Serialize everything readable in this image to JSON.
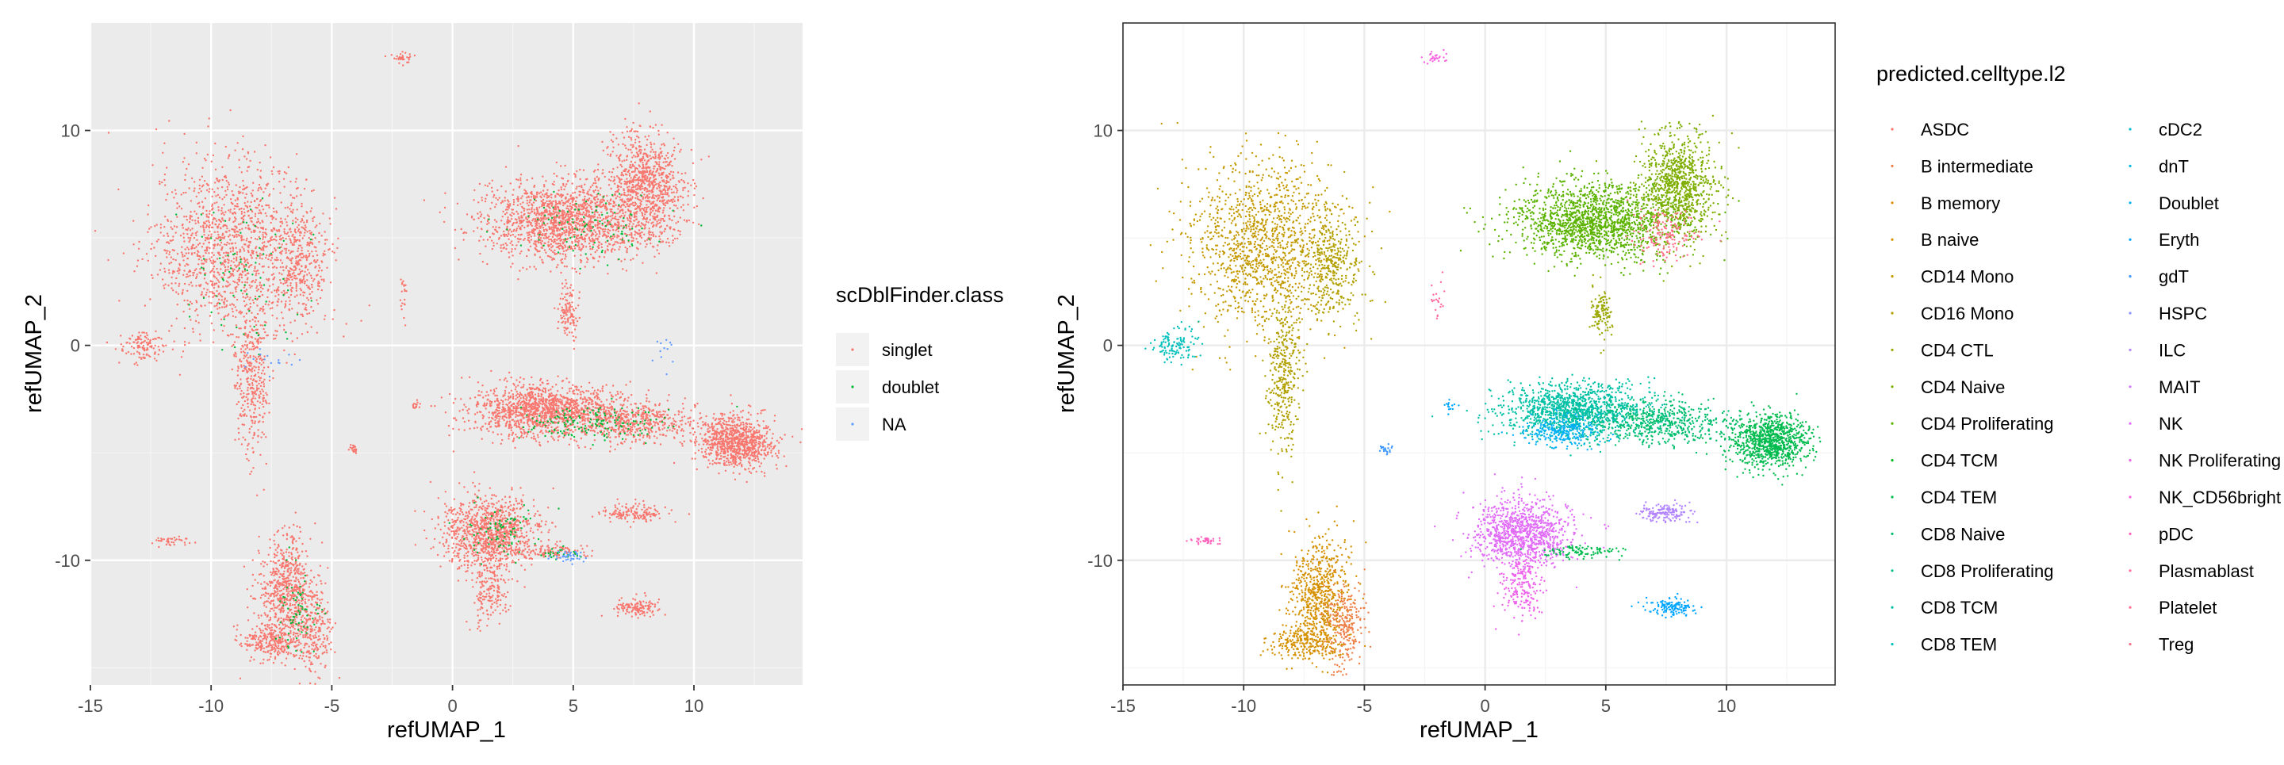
{
  "chart_data": [
    {
      "type": "scatter",
      "xlabel": "refUMAP_1",
      "ylabel": "refUMAP_2",
      "xlim": [
        -15,
        14.5
      ],
      "ylim": [
        -15.8,
        15
      ],
      "x_ticks": [
        -15,
        -10,
        -5,
        0,
        5,
        10
      ],
      "y_ticks": [
        -10,
        0,
        10
      ],
      "x_tick_labels": [
        "-15",
        "-10",
        "-5",
        "0",
        "5",
        "10"
      ],
      "y_tick_labels": [
        "-10",
        "0",
        "10"
      ],
      "theme": "gray",
      "grid": true,
      "legend": {
        "title": "scDblFinder.class",
        "position": "right",
        "entries": [
          {
            "label": "singlet",
            "color": "#F8766D"
          },
          {
            "label": "doublet",
            "color": "#00BA38"
          },
          {
            "label": "NA",
            "color": "#619CFF"
          }
        ]
      },
      "clusters": [
        {
          "class": "singlet",
          "cx": -9.2,
          "cy": 4.6,
          "sx": 1.6,
          "sy": 2.0,
          "n": 1300
        },
        {
          "class": "singlet",
          "cx": -6.3,
          "cy": 3.8,
          "sx": 0.6,
          "sy": 1.3,
          "n": 350
        },
        {
          "class": "singlet",
          "cx": -8.3,
          "cy": -1.5,
          "sx": 0.35,
          "sy": 1.8,
          "n": 350
        },
        {
          "class": "singlet",
          "cx": -12.8,
          "cy": 0.0,
          "sx": 0.5,
          "sy": 0.4,
          "n": 120
        },
        {
          "class": "singlet",
          "cx": -6.9,
          "cy": -11.5,
          "sx": 0.6,
          "sy": 1.3,
          "n": 650
        },
        {
          "class": "singlet",
          "cx": -5.8,
          "cy": -13.2,
          "sx": 0.4,
          "sy": 1.0,
          "n": 250
        },
        {
          "class": "singlet",
          "cx": -7.5,
          "cy": -13.8,
          "sx": 0.7,
          "sy": 0.4,
          "n": 250
        },
        {
          "class": "singlet",
          "cx": 4.6,
          "cy": 5.8,
          "sx": 1.7,
          "sy": 0.9,
          "n": 1600
        },
        {
          "class": "singlet",
          "cx": 8.0,
          "cy": 7.4,
          "sx": 0.8,
          "sy": 1.2,
          "n": 900
        },
        {
          "class": "singlet",
          "cx": 4.8,
          "cy": 1.5,
          "sx": 0.2,
          "sy": 0.6,
          "n": 120
        },
        {
          "class": "singlet",
          "cx": 3.8,
          "cy": -3.0,
          "sx": 1.5,
          "sy": 0.6,
          "n": 1300
        },
        {
          "class": "singlet",
          "cx": 7.5,
          "cy": -3.6,
          "sx": 1.4,
          "sy": 0.5,
          "n": 500
        },
        {
          "class": "singlet",
          "cx": 11.8,
          "cy": -4.5,
          "sx": 0.8,
          "sy": 0.6,
          "n": 900
        },
        {
          "class": "singlet",
          "cx": 1.5,
          "cy": -8.7,
          "sx": 1.0,
          "sy": 0.8,
          "n": 1000
        },
        {
          "class": "singlet",
          "cx": 1.6,
          "cy": -11.2,
          "sx": 0.4,
          "sy": 0.9,
          "n": 200
        },
        {
          "class": "singlet",
          "cx": 4.0,
          "cy": -9.6,
          "sx": 0.8,
          "sy": 0.15,
          "n": 100
        },
        {
          "class": "singlet",
          "cx": 7.5,
          "cy": -7.8,
          "sx": 0.6,
          "sy": 0.2,
          "n": 150
        },
        {
          "class": "singlet",
          "cx": 7.7,
          "cy": -12.2,
          "sx": 0.5,
          "sy": 0.2,
          "n": 130
        },
        {
          "class": "singlet",
          "cx": -2.1,
          "cy": 13.4,
          "sx": 0.25,
          "sy": 0.15,
          "n": 30
        },
        {
          "class": "singlet",
          "cx": -11.6,
          "cy": -9.1,
          "sx": 0.4,
          "sy": 0.1,
          "n": 40
        },
        {
          "class": "singlet",
          "cx": -4.1,
          "cy": -4.8,
          "sx": 0.15,
          "sy": 0.15,
          "n": 20
        },
        {
          "class": "singlet",
          "cx": -1.5,
          "cy": -2.8,
          "sx": 0.12,
          "sy": 0.12,
          "n": 15
        },
        {
          "class": "singlet",
          "cx": -2.0,
          "cy": 2.2,
          "sx": 0.12,
          "sy": 0.5,
          "n": 20
        },
        {
          "class": "doublet",
          "cx": -8.6,
          "cy": 3.2,
          "sx": 1.4,
          "sy": 2.0,
          "n": 80
        },
        {
          "class": "doublet",
          "cx": -6.5,
          "cy": -12.4,
          "sx": 0.4,
          "sy": 1.0,
          "n": 70
        },
        {
          "class": "doublet",
          "cx": 5.5,
          "cy": 5.5,
          "sx": 1.6,
          "sy": 0.8,
          "n": 100
        },
        {
          "class": "doublet",
          "cx": 5.5,
          "cy": -3.6,
          "sx": 1.6,
          "sy": 0.4,
          "n": 160
        },
        {
          "class": "doublet",
          "cx": 2.0,
          "cy": -8.5,
          "sx": 0.8,
          "sy": 0.6,
          "n": 80
        },
        {
          "class": "doublet",
          "cx": 4.5,
          "cy": -9.7,
          "sx": 0.5,
          "sy": 0.12,
          "n": 25
        },
        {
          "class": "NA",
          "cx": 4.8,
          "cy": -9.8,
          "sx": 0.4,
          "sy": 0.15,
          "n": 40
        },
        {
          "class": "NA",
          "cx": -7.6,
          "cy": -0.8,
          "sx": 0.5,
          "sy": 0.4,
          "n": 15
        },
        {
          "class": "NA",
          "cx": 9.0,
          "cy": -0.6,
          "sx": 0.25,
          "sy": 0.4,
          "n": 12
        }
      ]
    },
    {
      "type": "scatter",
      "xlabel": "refUMAP_1",
      "ylabel": "refUMAP_2",
      "xlim": [
        -15,
        14.5
      ],
      "ylim": [
        -15.8,
        15
      ],
      "x_ticks": [
        -15,
        -10,
        -5,
        0,
        5,
        10
      ],
      "y_ticks": [
        -10,
        0,
        10
      ],
      "x_tick_labels": [
        "-15",
        "-10",
        "-5",
        "0",
        "5",
        "10"
      ],
      "y_tick_labels": [
        "-10",
        "0",
        "10"
      ],
      "theme": "bw",
      "grid": true,
      "legend": {
        "title": "predicted.celltype.l2",
        "position": "right",
        "columns": 2,
        "entries": [
          {
            "label": "ASDC",
            "color": "#F8766D"
          },
          {
            "label": "B intermediate",
            "color": "#EF7F49"
          },
          {
            "label": "B memory",
            "color": "#E38900"
          },
          {
            "label": "B naive",
            "color": "#D59100"
          },
          {
            "label": "CD14 Mono",
            "color": "#C49A00"
          },
          {
            "label": "CD16 Mono",
            "color": "#B1A100"
          },
          {
            "label": "CD4 CTL",
            "color": "#9AA800"
          },
          {
            "label": "CD4 Naive",
            "color": "#7FAE00"
          },
          {
            "label": "CD4 Proliferating",
            "color": "#5BB300"
          },
          {
            "label": "CD4 TCM",
            "color": "#00B81F"
          },
          {
            "label": "CD4 TEM",
            "color": "#00BB4E"
          },
          {
            "label": "CD8 Naive",
            "color": "#00BE6F"
          },
          {
            "label": "CD8 Proliferating",
            "color": "#00C08B"
          },
          {
            "label": "CD8 TCM",
            "color": "#00C1A5"
          },
          {
            "label": "CD8 TEM",
            "color": "#00C0BC"
          },
          {
            "label": "cDC2",
            "color": "#00BDD2"
          },
          {
            "label": "dnT",
            "color": "#00B8E5"
          },
          {
            "label": "Doublet",
            "color": "#00B0F6"
          },
          {
            "label": "Eryth",
            "color": "#00A5FF"
          },
          {
            "label": "gdT",
            "color": "#3D97FF"
          },
          {
            "label": "HSPC",
            "color": "#8B93FF"
          },
          {
            "label": "ILC",
            "color": "#B385FF"
          },
          {
            "label": "MAIT",
            "color": "#CF78FF"
          },
          {
            "label": "NK",
            "color": "#E16CF7"
          },
          {
            "label": "NK Proliferating",
            "color": "#EE62EA"
          },
          {
            "label": "NK_CD56bright",
            "color": "#F863DF"
          },
          {
            "label": "pDC",
            "color": "#FF62BC"
          },
          {
            "label": "Plasmablast",
            "color": "#FF699C"
          },
          {
            "label": "Platelet",
            "color": "#FF6C91"
          },
          {
            "label": "Treg",
            "color": "#FF6F87"
          }
        ]
      },
      "clusters": [
        {
          "color": "#C49A00",
          "cx": -9.2,
          "cy": 4.6,
          "sx": 1.6,
          "sy": 2.0,
          "n": 1300
        },
        {
          "color": "#B1A100",
          "cx": -6.3,
          "cy": 3.8,
          "sx": 0.6,
          "sy": 1.3,
          "n": 350
        },
        {
          "color": "#B1A100",
          "cx": -8.3,
          "cy": -1.5,
          "sx": 0.35,
          "sy": 1.8,
          "n": 350
        },
        {
          "color": "#00C0BC",
          "cx": -12.8,
          "cy": 0.0,
          "sx": 0.5,
          "sy": 0.4,
          "n": 120
        },
        {
          "color": "#D59100",
          "cx": -6.9,
          "cy": -11.5,
          "sx": 0.6,
          "sy": 1.3,
          "n": 650
        },
        {
          "color": "#EF7F49",
          "cx": -5.8,
          "cy": -13.2,
          "sx": 0.4,
          "sy": 1.0,
          "n": 250
        },
        {
          "color": "#D59100",
          "cx": -7.5,
          "cy": -13.8,
          "sx": 0.7,
          "sy": 0.4,
          "n": 250
        },
        {
          "color": "#5BB300",
          "cx": 4.6,
          "cy": 5.8,
          "sx": 1.7,
          "sy": 0.9,
          "n": 1600
        },
        {
          "color": "#7FAE00",
          "cx": 8.0,
          "cy": 7.4,
          "sx": 0.8,
          "sy": 1.2,
          "n": 900
        },
        {
          "color": "#FF6F87",
          "cx": 7.5,
          "cy": 5.2,
          "sx": 0.6,
          "sy": 0.6,
          "n": 160
        },
        {
          "color": "#9AA800",
          "cx": 4.8,
          "cy": 1.5,
          "sx": 0.2,
          "sy": 0.6,
          "n": 120
        },
        {
          "color": "#00C1A5",
          "cx": 3.8,
          "cy": -3.0,
          "sx": 1.5,
          "sy": 0.6,
          "n": 1300
        },
        {
          "color": "#00B0F6",
          "cx": 3.2,
          "cy": -4.0,
          "sx": 0.8,
          "sy": 0.4,
          "n": 250
        },
        {
          "color": "#00BE6F",
          "cx": 7.5,
          "cy": -3.6,
          "sx": 1.4,
          "sy": 0.5,
          "n": 500
        },
        {
          "color": "#00BB4E",
          "cx": 11.8,
          "cy": -4.5,
          "sx": 0.8,
          "sy": 0.6,
          "n": 900
        },
        {
          "color": "#E16CF7",
          "cx": 1.5,
          "cy": -8.7,
          "sx": 1.0,
          "sy": 0.8,
          "n": 1000
        },
        {
          "color": "#EE62EA",
          "cx": 1.6,
          "cy": -11.2,
          "sx": 0.4,
          "sy": 0.9,
          "n": 200
        },
        {
          "color": "#00BB4E",
          "cx": 4.0,
          "cy": -9.6,
          "sx": 0.8,
          "sy": 0.15,
          "n": 100
        },
        {
          "color": "#B385FF",
          "cx": 7.5,
          "cy": -7.8,
          "sx": 0.6,
          "sy": 0.2,
          "n": 150
        },
        {
          "color": "#00A5FF",
          "cx": 7.7,
          "cy": -12.2,
          "sx": 0.5,
          "sy": 0.2,
          "n": 130
        },
        {
          "color": "#F863DF",
          "cx": -2.1,
          "cy": 13.4,
          "sx": 0.25,
          "sy": 0.15,
          "n": 30
        },
        {
          "color": "#FF62BC",
          "cx": -11.6,
          "cy": -9.1,
          "sx": 0.4,
          "sy": 0.1,
          "n": 40
        },
        {
          "color": "#3D97FF",
          "cx": -4.1,
          "cy": -4.8,
          "sx": 0.15,
          "sy": 0.15,
          "n": 20
        },
        {
          "color": "#00A5FF",
          "cx": -1.5,
          "cy": -2.8,
          "sx": 0.12,
          "sy": 0.12,
          "n": 15
        },
        {
          "color": "#FF699C",
          "cx": -2.0,
          "cy": 2.2,
          "sx": 0.12,
          "sy": 0.5,
          "n": 20
        }
      ]
    }
  ]
}
